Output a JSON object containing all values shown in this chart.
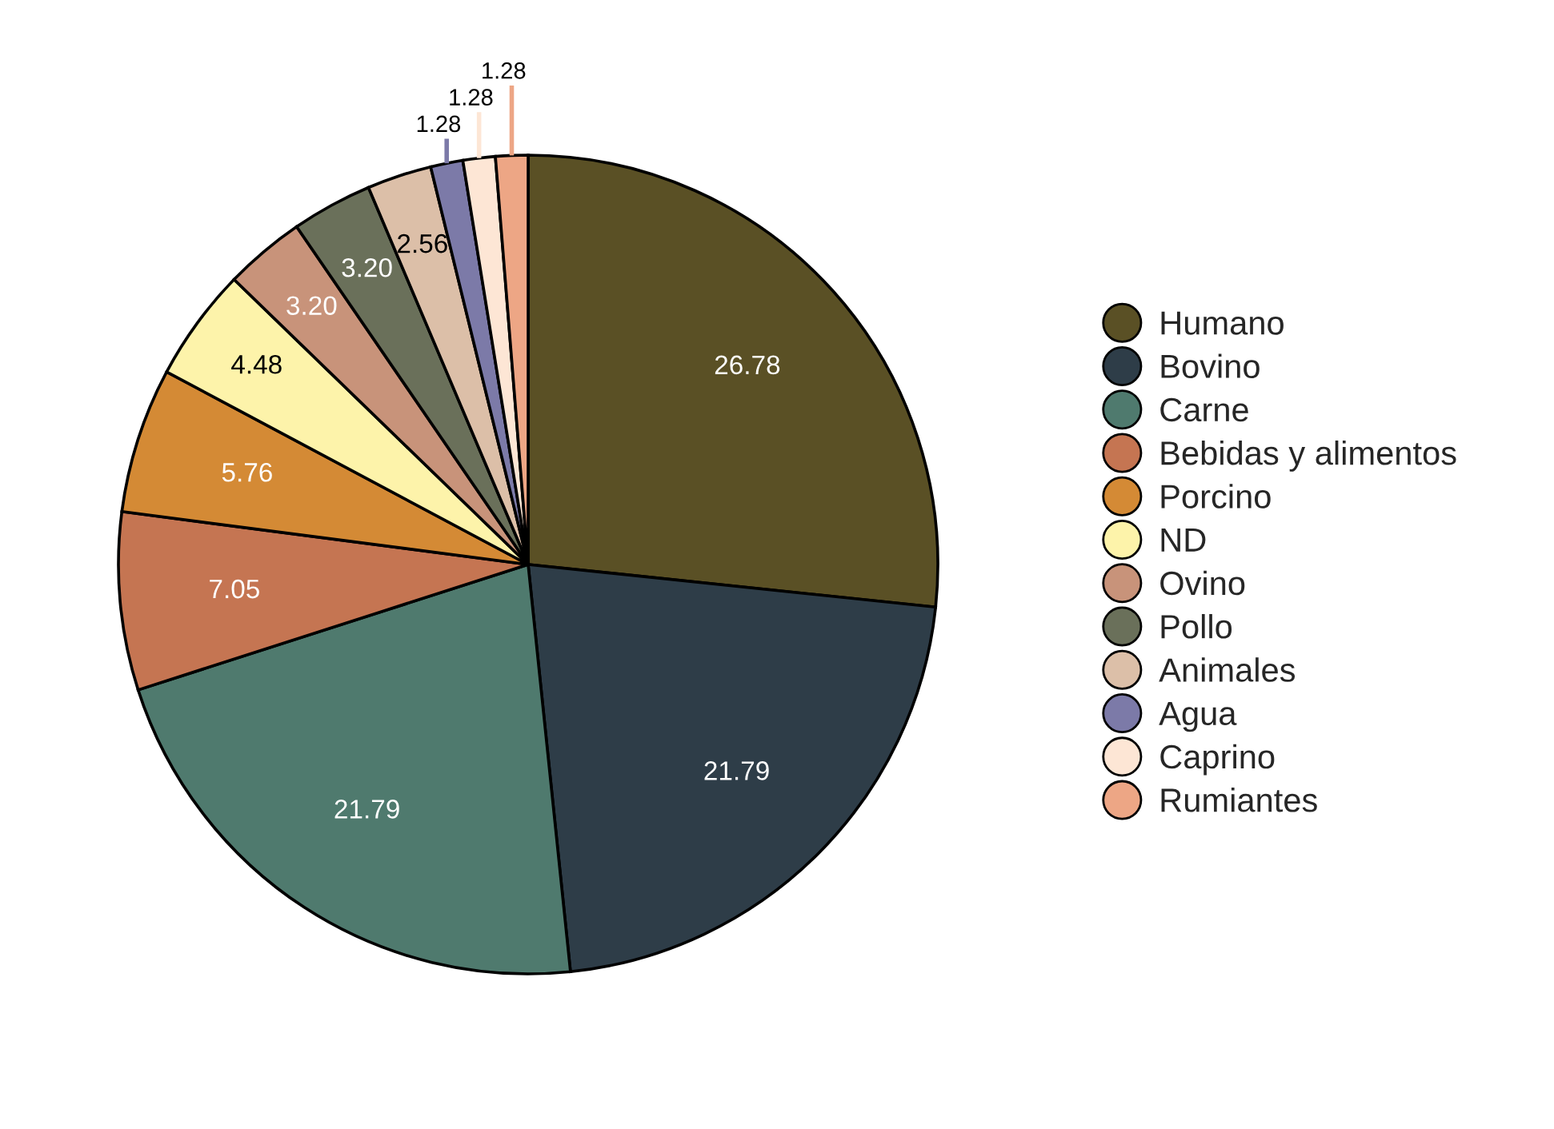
{
  "chart_data": {
    "type": "pie",
    "categories": [
      "Humano",
      "Bovino",
      "Carne",
      "Bebidas y alimentos",
      "Porcino",
      "ND",
      "Ovino",
      "Pollo",
      "Animales",
      "Agua",
      "Caprino",
      "Rumiantes"
    ],
    "values": [
      26.78,
      21.79,
      21.79,
      7.05,
      5.76,
      4.48,
      3.2,
      3.2,
      2.56,
      1.28,
      1.28,
      1.28
    ],
    "colors": [
      "#5a5025",
      "#2e3d48",
      "#4f7a6e",
      "#c57552",
      "#d48a35",
      "#fdf3aa",
      "#c8937a",
      "#6a705a",
      "#dcbfa8",
      "#7c7aa8",
      "#fde6d5",
      "#eda685"
    ],
    "value_labels": [
      "26.78",
      "21.79",
      "21.79",
      "7.05",
      "5.76",
      "4.48",
      "3.20",
      "3.20",
      "2.56",
      "1.28",
      "1.28",
      "1.28"
    ],
    "legend": "right"
  }
}
